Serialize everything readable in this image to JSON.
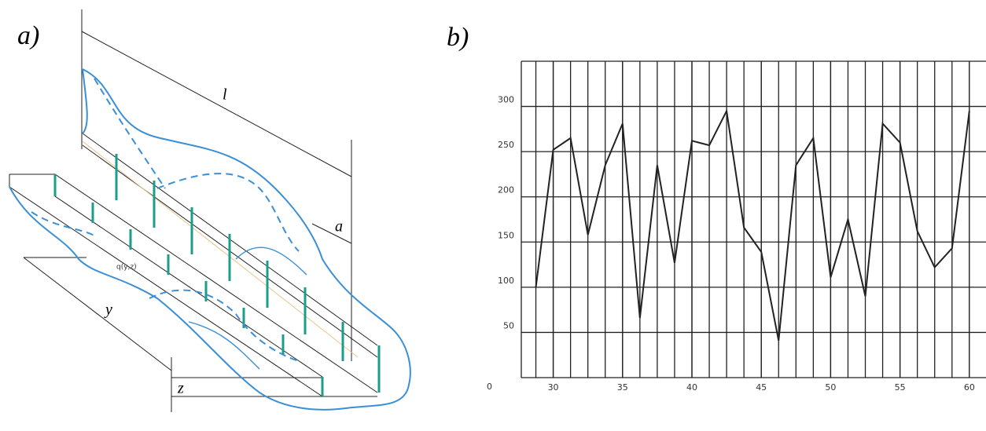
{
  "diagram": {
    "label": "a)",
    "dimension_labels": [
      "l",
      "a",
      "y",
      "z"
    ],
    "load_label": "q(y,z)"
  },
  "chart_data": {
    "type": "line",
    "label": "b)",
    "x": [
      28.75,
      30,
      31.25,
      32.5,
      33.75,
      35,
      36.25,
      37.5,
      38.75,
      40,
      41.25,
      42.5,
      43.75,
      45,
      46.25,
      47.5,
      48.75,
      50,
      51.25,
      52.5,
      53.75,
      55,
      56.25,
      57.5,
      58.75,
      60
    ],
    "series": [
      {
        "color": "#222222",
        "values": [
          100,
          252,
          265,
          158,
          235,
          281,
          66,
          235,
          127,
          262,
          257,
          295,
          166,
          139,
          41,
          235,
          265,
          111,
          175,
          90,
          281,
          260,
          162,
          122,
          143,
          295
        ]
      }
    ],
    "xlim": [
      27.7,
      61.2
    ],
    "ylim": [
      0,
      350
    ],
    "xticks": [
      30,
      35,
      40,
      45,
      50,
      55,
      60
    ],
    "yticks": [
      0,
      50,
      100,
      150,
      200,
      250,
      300
    ],
    "grid": true
  }
}
